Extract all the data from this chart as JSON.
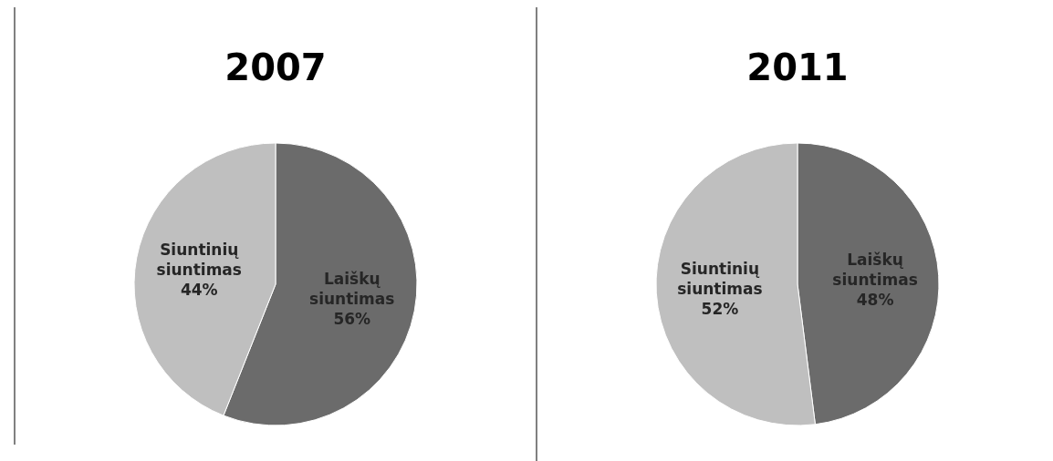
{
  "chart_data": [
    {
      "type": "pie",
      "title": "2007",
      "categories": [
        "Laiškų siuntimas",
        "Siuntinių siuntimas"
      ],
      "values": [
        56,
        44
      ],
      "colors": [
        "#6b6b6b",
        "#bfbfbf"
      ],
      "value_labels": [
        "56%",
        "44%"
      ]
    },
    {
      "type": "pie",
      "title": "2011",
      "categories": [
        "Laiškų siuntimas",
        "Siuntinių siuntimas"
      ],
      "values": [
        48,
        52
      ],
      "colors": [
        "#6b6b6b",
        "#bfbfbf"
      ],
      "value_labels": [
        "48%",
        "52%"
      ]
    }
  ]
}
